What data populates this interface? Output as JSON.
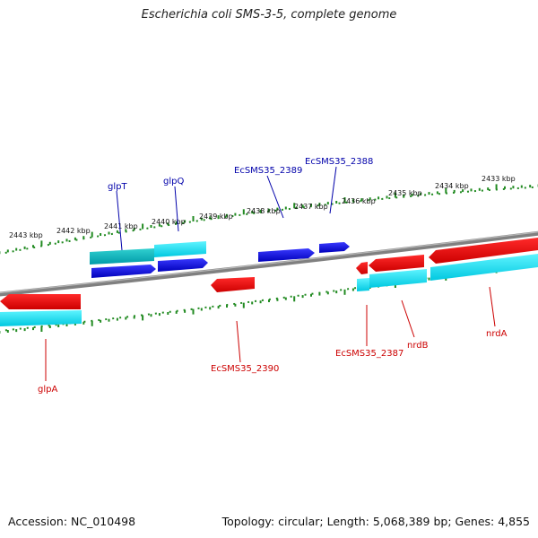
{
  "title": "Escherichia coli SMS-3-5, complete genome",
  "footer": {
    "accession": "Accession: NC_010498",
    "summary": "Topology: circular; Length: 5,068,389 bp; Genes: 4,855"
  },
  "ruler": {
    "ticks": [
      "2443 kbp",
      "2442 kbp",
      "2441 kbp",
      "2440 kbp",
      "2439 kbp",
      "2438 kbp",
      "2437 kbp",
      "2436 kbp",
      "2435 kbp",
      "2434 kbp",
      "2433 kbp"
    ]
  },
  "genes_top": [
    {
      "label": "glpT",
      "color": "#0000aa"
    },
    {
      "label": "glpQ",
      "color": "#0000aa"
    },
    {
      "label": "EcSMS35_2389",
      "color": "#0000aa"
    },
    {
      "label": "EcSMS35_2388",
      "color": "#0000aa"
    }
  ],
  "genes_bottom": [
    {
      "label": "glpA",
      "color": "#cc0000"
    },
    {
      "label": "EcSMS35_2390",
      "color": "#cc0000"
    },
    {
      "label": "EcSMS35_2387",
      "color": "#cc0000"
    },
    {
      "label": "nrdB",
      "color": "#cc0000"
    },
    {
      "label": "nrdA",
      "color": "#cc0000"
    }
  ],
  "colors": {
    "forward_cds": "#0000dd",
    "reverse_cds": "#ee0000",
    "gene_feature": "#00e5ee",
    "backbone": "#808080",
    "ruler": "#228b22"
  }
}
